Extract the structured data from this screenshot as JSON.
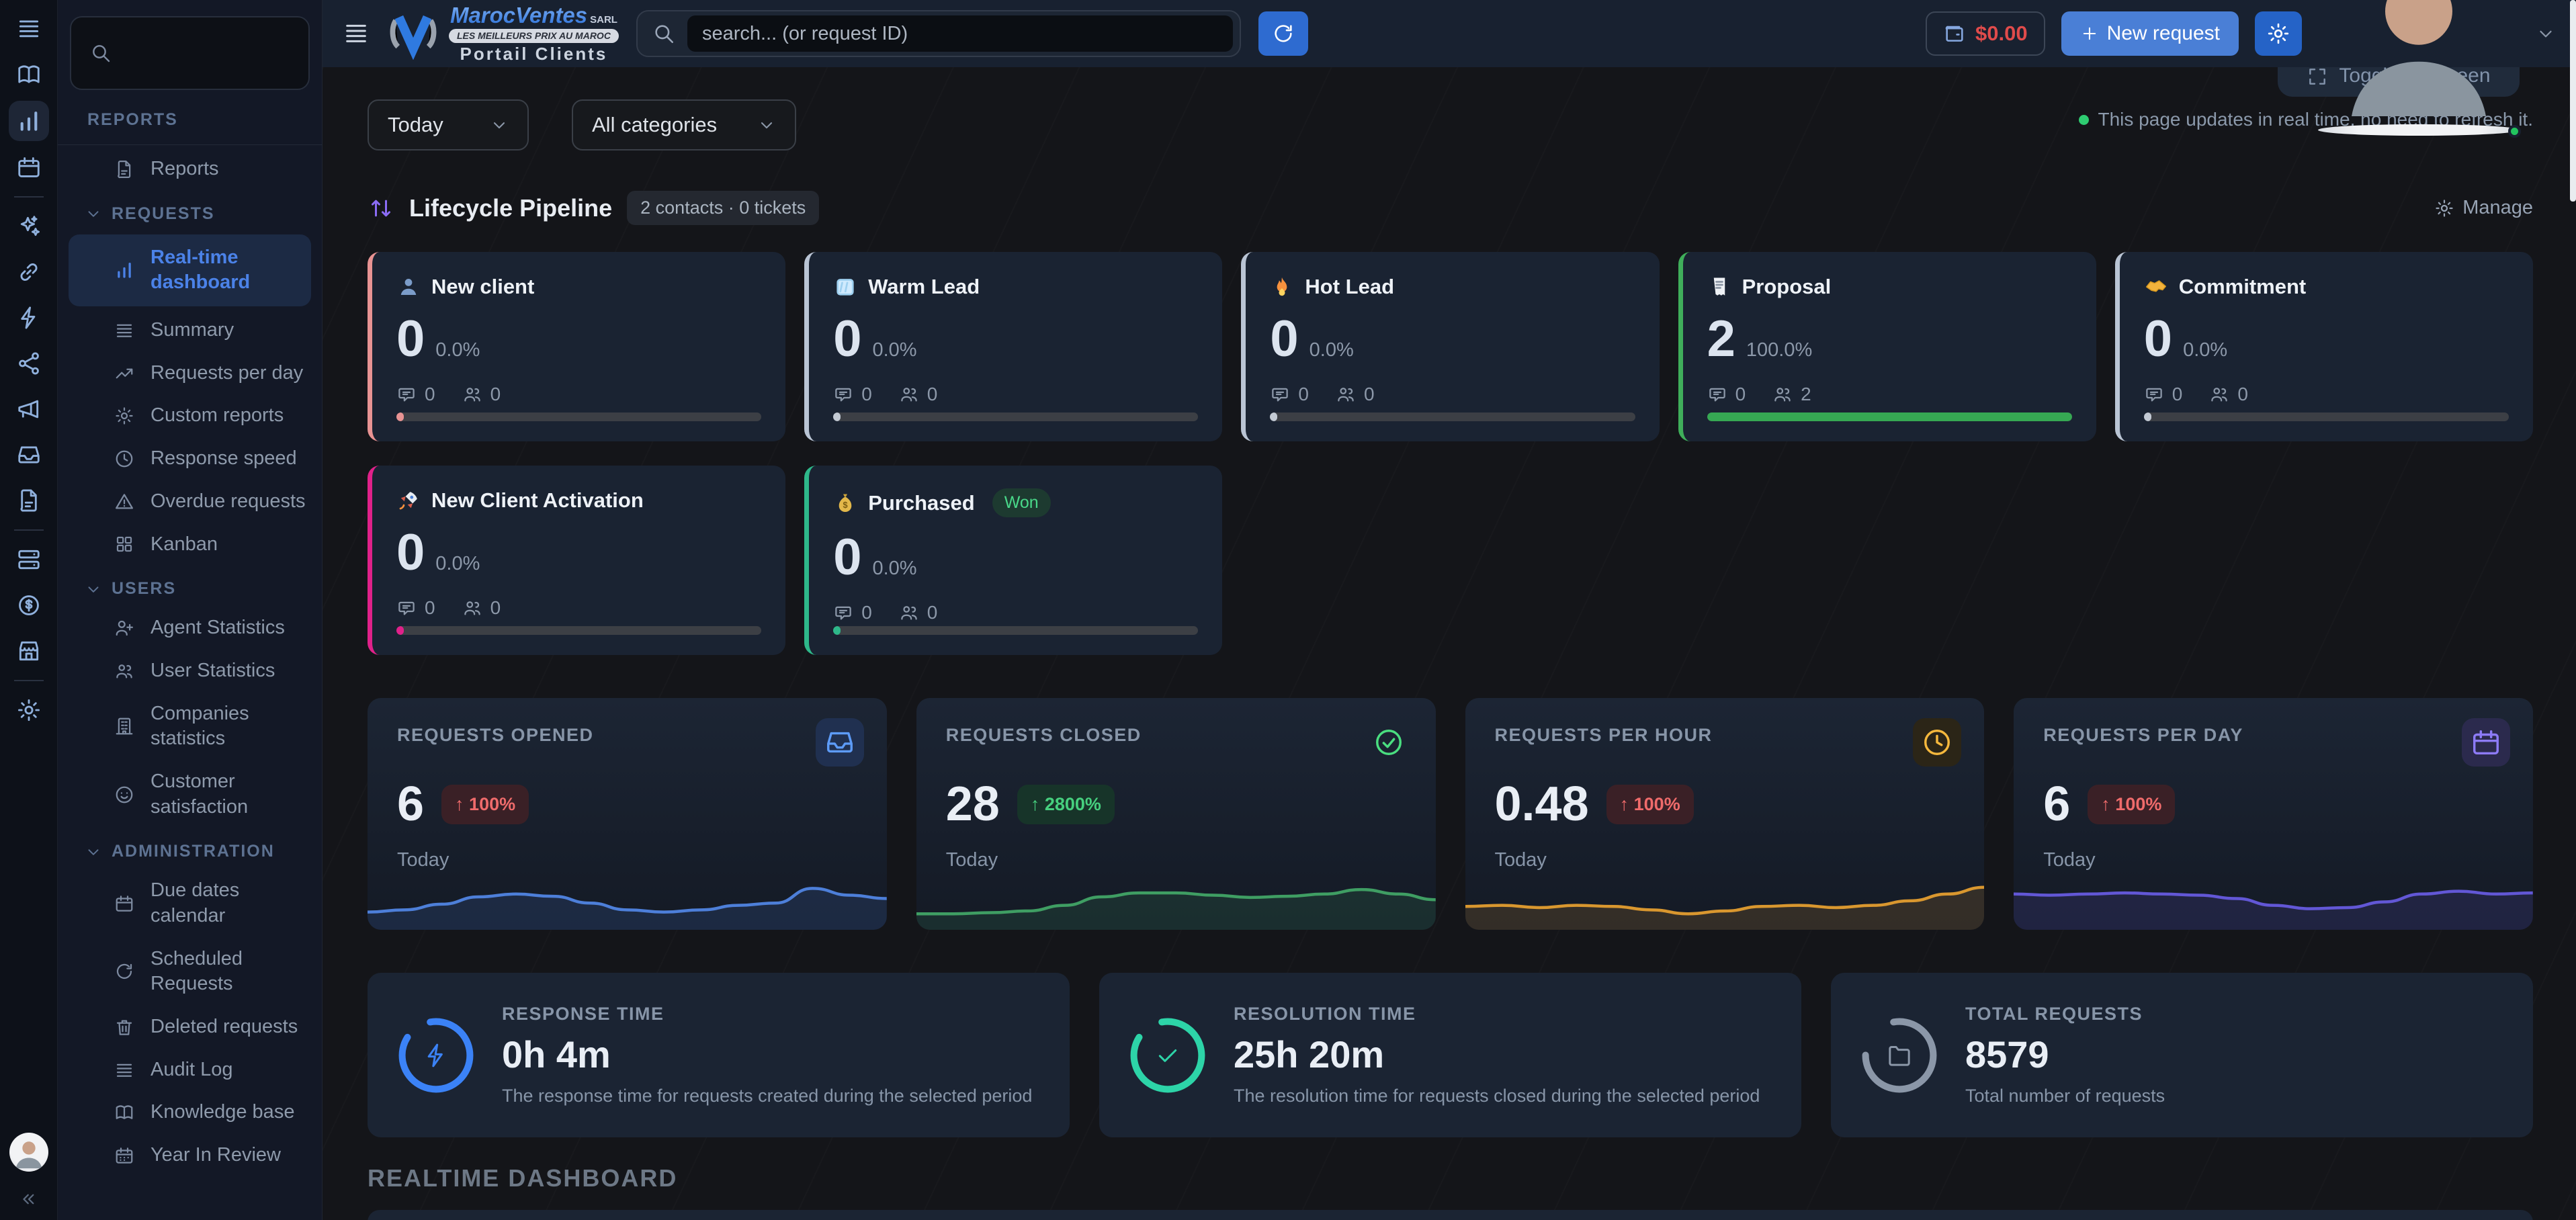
{
  "topbar": {
    "logo": {
      "brand": "MarocVentes",
      "brand_suffix": "SARL",
      "tagline": "LES MEILLEURS PRIX AU MAROC",
      "subtitle": "Portail Clients"
    },
    "search_placeholder": "search... (or request ID)",
    "wallet_amount": "$0.00",
    "new_request_plus": "+",
    "new_request_label": "New request",
    "fullscreen_tooltip": "Toggle fullscreen"
  },
  "status_line": "This page updates in real time, no need to refresh it.",
  "filters": {
    "period": "Today",
    "category": "All categories"
  },
  "pipeline": {
    "title": "Lifecycle Pipeline",
    "summary": "2 contacts · 0 tickets",
    "manage_label": "Manage",
    "cards": [
      {
        "icon": "person-icon",
        "title": "New client",
        "value": "0",
        "percent": "0.0%",
        "comments": "0",
        "contacts": "0",
        "accent": "#e89393",
        "bar": "#e89393",
        "progress": "2%"
      },
      {
        "icon": "ice-icon",
        "title": "Warm Lead",
        "value": "0",
        "percent": "0.0%",
        "comments": "0",
        "contacts": "0",
        "accent": "#b9c4d4",
        "bar": "#c3cad4",
        "progress": "2%"
      },
      {
        "icon": "flame-icon",
        "title": "Hot Lead",
        "value": "0",
        "percent": "0.0%",
        "comments": "0",
        "contacts": "0",
        "accent": "#b9c4d4",
        "bar": "#c3cad4",
        "progress": "2%"
      },
      {
        "icon": "receipt-icon",
        "title": "Proposal",
        "value": "2",
        "percent": "100.0%",
        "comments": "0",
        "contacts": "2",
        "accent": "#3fae5a",
        "bar": "#36a853",
        "progress": "100%"
      },
      {
        "icon": "handshake-icon",
        "title": "Commitment",
        "value": "0",
        "percent": "0.0%",
        "comments": "0",
        "contacts": "0",
        "accent": "#b9c4d4",
        "bar": "#c3cad4",
        "progress": "2%"
      },
      {
        "icon": "rocket-icon",
        "title": "New Client Activation",
        "value": "0",
        "percent": "0.0%",
        "comments": "0",
        "contacts": "0",
        "accent": "#e0218a",
        "bar": "#e0218a",
        "progress": "2%"
      },
      {
        "icon": "moneybag-icon",
        "title": "Purchased",
        "badge": "Won",
        "value": "0",
        "percent": "0.0%",
        "comments": "0",
        "contacts": "0",
        "accent": "#2eb88a",
        "bar": "#2eb88a",
        "progress": "2%"
      }
    ]
  },
  "stats": {
    "cards": [
      {
        "label": "REQUESTS OPENED",
        "value": "6",
        "change": "↑ 100%",
        "change_bg": "#3a2026",
        "change_fg": "#ef6b6b",
        "period": "Today",
        "icon": "inbox-icon",
        "color": "#4d7fd9",
        "sparkline": [
          0.18,
          0.22,
          0.32,
          0.45,
          0.5,
          0.46,
          0.34,
          0.22,
          0.18,
          0.22,
          0.3,
          0.34,
          0.6,
          0.48,
          0.42
        ]
      },
      {
        "label": "REQUESTS CLOSED",
        "value": "28",
        "change": "↑ 2800%",
        "change_bg": "#173429",
        "change_fg": "#46cf7e",
        "period": "Today",
        "icon": "check-circle-icon",
        "color": "#3f9e63",
        "sparkline": [
          0.15,
          0.15,
          0.17,
          0.2,
          0.3,
          0.45,
          0.52,
          0.52,
          0.48,
          0.44,
          0.46,
          0.5,
          0.58,
          0.5,
          0.4
        ]
      },
      {
        "label": "REQUESTS PER HOUR",
        "value": "0.48",
        "change": "↑ 100%",
        "change_bg": "#3a2026",
        "change_fg": "#ef6b6b",
        "period": "Today",
        "icon": "clock-icon",
        "color": "#d9972f",
        "sparkline": [
          0.28,
          0.3,
          0.26,
          0.3,
          0.28,
          0.22,
          0.15,
          0.2,
          0.28,
          0.3,
          0.26,
          0.3,
          0.38,
          0.5,
          0.62
        ]
      },
      {
        "label": "REQUESTS PER DAY",
        "value": "6",
        "change": "↑ 100%",
        "change_bg": "#3a2026",
        "change_fg": "#ef6b6b",
        "period": "Today",
        "icon": "calendar-icon",
        "color": "#6257d6",
        "sparkline": [
          0.5,
          0.48,
          0.5,
          0.52,
          0.5,
          0.48,
          0.42,
          0.3,
          0.24,
          0.26,
          0.36,
          0.5,
          0.55,
          0.5,
          0.52
        ]
      }
    ]
  },
  "time_cards": [
    {
      "label": "RESPONSE TIME",
      "value": "0h 4m",
      "description": "The response time for requests created during the selected period",
      "icon": "zap-icon",
      "color": "#3b82f6"
    },
    {
      "label": "RESOLUTION TIME",
      "value": "25h 20m",
      "description": "The resolution time for requests closed during the selected period",
      "icon": "check-icon",
      "color": "#2dd4a8"
    },
    {
      "label": "TOTAL REQUESTS",
      "value": "8579",
      "description": "Total number of requests",
      "icon": "folder-icon",
      "color": "#8b97a8"
    }
  ],
  "section_footer": {
    "realtime_heading": "REALTIME DASHBOARD"
  },
  "sidebar": {
    "sections": [
      {
        "label": "REPORTS",
        "items": [
          {
            "icon": "file-icon",
            "label": "Reports"
          }
        ]
      },
      {
        "label": "REQUESTS",
        "items": [
          {
            "icon": "bar-chart-icon",
            "label": "Real-time dashboard",
            "active": true
          },
          {
            "icon": "list-icon",
            "label": "Summary"
          },
          {
            "icon": "trend-icon",
            "label": "Requests per day"
          },
          {
            "icon": "gear-icon",
            "label": "Custom reports"
          },
          {
            "icon": "clock-icon",
            "label": "Response speed"
          },
          {
            "icon": "warning-icon",
            "label": "Overdue requests"
          },
          {
            "icon": "kanban-icon",
            "label": "Kanban"
          }
        ]
      },
      {
        "label": "USERS",
        "items": [
          {
            "icon": "user-plus-icon",
            "label": "Agent Statistics"
          },
          {
            "icon": "users-icon",
            "label": "User Statistics"
          },
          {
            "icon": "building-icon",
            "label": "Companies statistics"
          },
          {
            "icon": "smile-icon",
            "label": "Customer satisfaction"
          }
        ]
      },
      {
        "label": "ADMINISTRATION",
        "items": [
          {
            "icon": "calendar-icon",
            "label": "Due dates calendar"
          },
          {
            "icon": "refresh-icon",
            "label": "Scheduled Requests"
          },
          {
            "icon": "trash-icon",
            "label": "Deleted requests"
          },
          {
            "icon": "list-icon",
            "label": "Audit Log"
          },
          {
            "icon": "book-icon",
            "label": "Knowledge base"
          },
          {
            "icon": "calendar-days-icon",
            "label": "Year In Review"
          }
        ]
      }
    ]
  },
  "rail_icons": [
    "menu",
    "book",
    "bar-chart",
    "calendar",
    "sparkles",
    "link",
    "zap",
    "share",
    "megaphone",
    "inbox",
    "file",
    "server",
    "dollar",
    "store",
    "gear"
  ]
}
